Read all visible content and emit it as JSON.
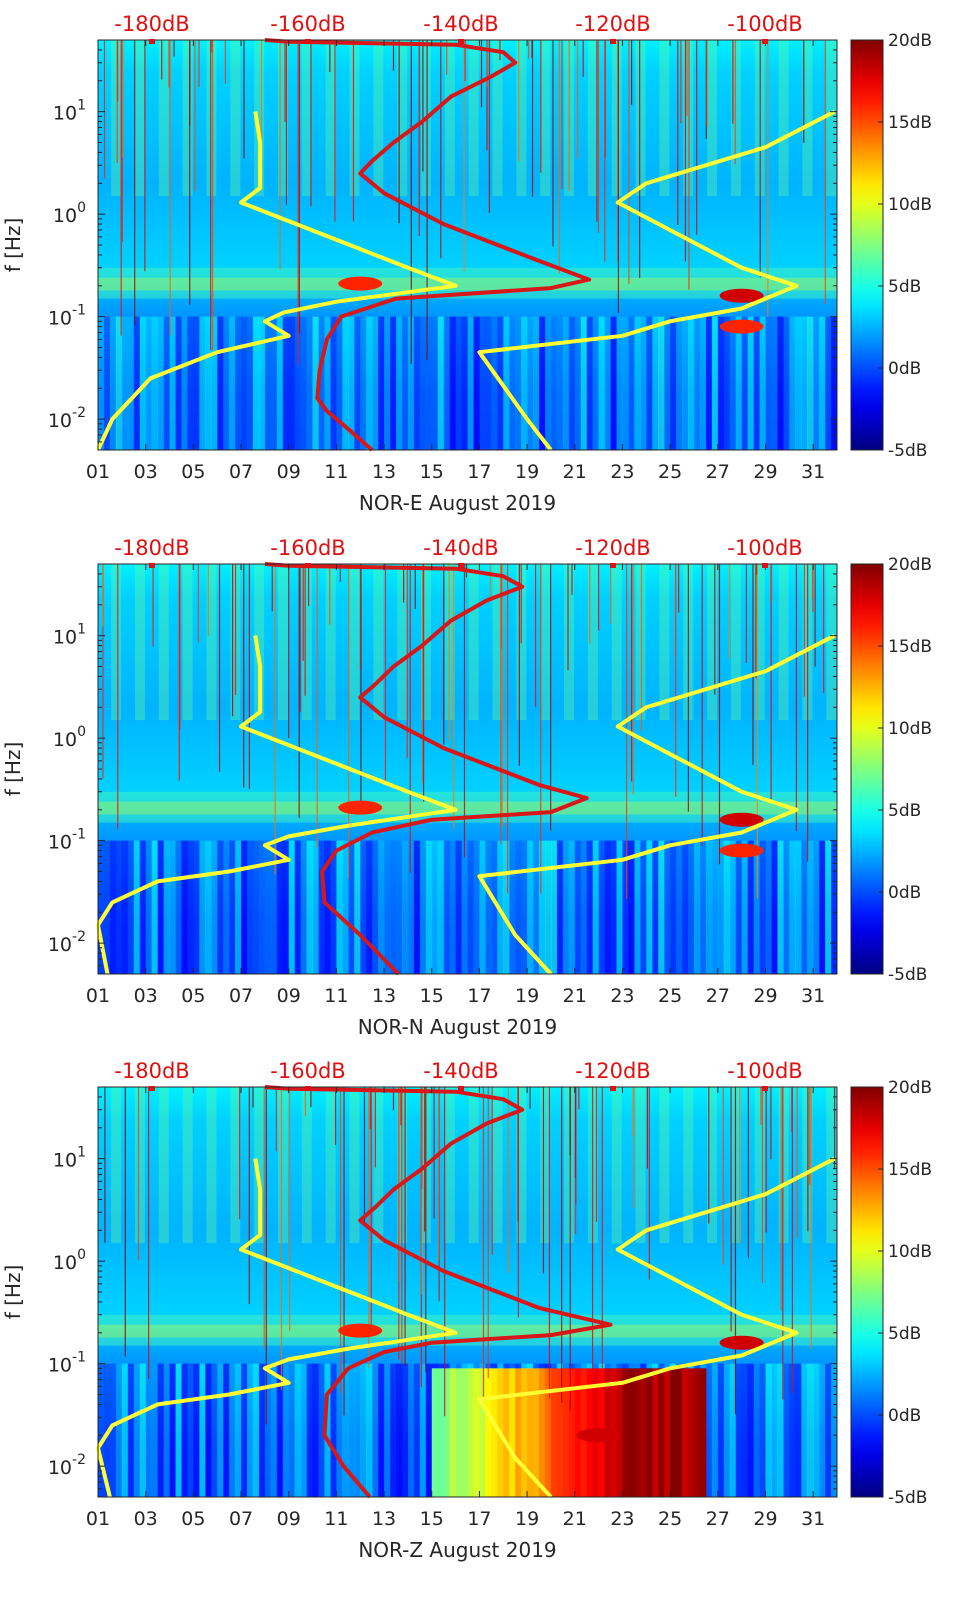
{
  "chart_data": [
    {
      "type": "heatmap",
      "panel": "NOR-E",
      "xlabel": "NOR-E August 2019",
      "ylabel": "f [Hz]",
      "x_ticks": [
        "01",
        "03",
        "05",
        "07",
        "09",
        "11",
        "13",
        "15",
        "17",
        "19",
        "21",
        "23",
        "25",
        "27",
        "29",
        "31"
      ],
      "x_range": [
        1,
        32
      ],
      "y_scale": "log",
      "y_ticks": [
        {
          "v": 0.01,
          "m": "10",
          "e": "-2"
        },
        {
          "v": 0.1,
          "m": "10",
          "e": "-1"
        },
        {
          "v": 1,
          "m": "10",
          "e": "0"
        },
        {
          "v": 10,
          "m": "10",
          "e": "1"
        }
      ],
      "y_range": [
        0.005,
        50
      ],
      "top_axis_labels": [
        "-180dB",
        "-160dB",
        "-140dB",
        "-120dB",
        "-100dB"
      ],
      "colorbar": {
        "ticks": [
          "20dB",
          "15dB",
          "10dB",
          "5dB",
          "0dB",
          "-5dB"
        ],
        "range": [
          -5,
          20
        ],
        "colormap": "jet"
      },
      "microseism_peaks_hz": [
        0.2,
        0.07
      ],
      "notable_events": [
        {
          "day": 28,
          "f_hz": 0.16,
          "db": 18
        },
        {
          "day": 28,
          "f_hz": 0.08,
          "db": 16
        },
        {
          "day": 12,
          "f_hz": 0.21,
          "db": 16
        }
      ],
      "series": [
        {
          "color": "#ffff33",
          "x": [
            1,
            1.6,
            3.2,
            6.0,
            9.0,
            8.0,
            8.8,
            11.0,
            16.0,
            14.0,
            7.0,
            7.8,
            7.8,
            7.6
          ],
          "y": [
            0.005,
            0.01,
            0.025,
            0.045,
            0.065,
            0.09,
            0.11,
            0.14,
            0.2,
            0.3,
            1.3,
            1.8,
            5.0,
            10.0
          ]
        },
        {
          "color": "#ffff33",
          "x": [
            20.0,
            19.0,
            17.0,
            23.0,
            25.0,
            28.0,
            30.3,
            28.0,
            22.8,
            24.0,
            29.0,
            31.9
          ],
          "y": [
            0.005,
            0.01,
            0.045,
            0.065,
            0.09,
            0.12,
            0.2,
            0.3,
            1.3,
            2.0,
            4.5,
            10.0
          ]
        },
        {
          "color": "#d81818",
          "x": [
            12.5,
            11.5,
            10.6,
            10.2,
            10.3,
            10.6,
            11.2,
            13.5,
            20.0,
            21.6,
            19.5,
            15.5,
            13.0,
            12.0,
            12.5,
            13.4,
            14.6,
            15.8,
            17.5,
            18.5,
            18.0,
            16.0,
            9.0,
            8.0
          ],
          "y": [
            0.005,
            0.008,
            0.012,
            0.016,
            0.03,
            0.06,
            0.1,
            0.15,
            0.19,
            0.23,
            0.35,
            0.8,
            1.6,
            2.5,
            3.3,
            5.0,
            8.0,
            14.0,
            22.0,
            30.0,
            38.0,
            45.0,
            48.0,
            50.0
          ]
        }
      ]
    },
    {
      "type": "heatmap",
      "panel": "NOR-N",
      "xlabel": "NOR-N August 2019",
      "ylabel": "f [Hz]",
      "x_ticks": [
        "01",
        "03",
        "05",
        "07",
        "09",
        "11",
        "13",
        "15",
        "17",
        "19",
        "21",
        "23",
        "25",
        "27",
        "29",
        "31"
      ],
      "x_range": [
        1,
        32
      ],
      "y_scale": "log",
      "y_ticks": [
        {
          "v": 0.01,
          "m": "10",
          "e": "-2"
        },
        {
          "v": 0.1,
          "m": "10",
          "e": "-1"
        },
        {
          "v": 1,
          "m": "10",
          "e": "0"
        },
        {
          "v": 10,
          "m": "10",
          "e": "1"
        }
      ],
      "y_range": [
        0.005,
        50
      ],
      "top_axis_labels": [
        "-180dB",
        "-160dB",
        "-140dB",
        "-120dB",
        "-100dB"
      ],
      "colorbar": {
        "ticks": [
          "20dB",
          "15dB",
          "10dB",
          "5dB",
          "0dB",
          "-5dB"
        ],
        "range": [
          -5,
          20
        ],
        "colormap": "jet"
      },
      "microseism_peaks_hz": [
        0.2,
        0.07
      ],
      "notable_events": [
        {
          "day": 28,
          "f_hz": 0.16,
          "db": 18
        },
        {
          "day": 28,
          "f_hz": 0.08,
          "db": 16
        },
        {
          "day": 12,
          "f_hz": 0.21,
          "db": 16
        }
      ],
      "series": [
        {
          "color": "#ffff33",
          "x": [
            1.4,
            1.0,
            1.6,
            3.5,
            6.5,
            9.0,
            8.0,
            9.0,
            11.5,
            16.0,
            14.0,
            7.0,
            7.8,
            7.8,
            7.6
          ],
          "y": [
            0.005,
            0.015,
            0.025,
            0.04,
            0.05,
            0.065,
            0.09,
            0.11,
            0.14,
            0.2,
            0.3,
            1.3,
            1.8,
            5.0,
            10.0
          ]
        },
        {
          "color": "#ffff33",
          "x": [
            20.0,
            18.5,
            17.0,
            23.0,
            25.0,
            28.0,
            30.3,
            28.0,
            22.8,
            24.0,
            29.0,
            31.9
          ],
          "y": [
            0.005,
            0.012,
            0.045,
            0.065,
            0.09,
            0.12,
            0.2,
            0.3,
            1.3,
            2.0,
            4.5,
            10.0
          ]
        },
        {
          "color": "#d81818",
          "x": [
            13.6,
            12.0,
            10.5,
            10.4,
            11.0,
            12.5,
            15.0,
            20.0,
            21.5,
            19.5,
            15.5,
            13.0,
            12.0,
            12.6,
            13.4,
            14.6,
            15.8,
            17.3,
            18.8,
            18.0,
            16.0,
            9.0,
            8.0
          ],
          "y": [
            0.005,
            0.012,
            0.025,
            0.05,
            0.08,
            0.12,
            0.16,
            0.19,
            0.26,
            0.35,
            0.8,
            1.6,
            2.5,
            3.3,
            5.0,
            8.0,
            14.0,
            22.0,
            30.0,
            38.0,
            45.0,
            48.0,
            50.0
          ]
        }
      ]
    },
    {
      "type": "heatmap",
      "panel": "NOR-Z",
      "xlabel": "NOR-Z August 2019",
      "ylabel": "f [Hz]",
      "x_ticks": [
        "01",
        "03",
        "05",
        "07",
        "09",
        "11",
        "13",
        "15",
        "17",
        "19",
        "21",
        "23",
        "25",
        "27",
        "29",
        "31"
      ],
      "x_range": [
        1,
        32
      ],
      "y_scale": "log",
      "y_ticks": [
        {
          "v": 0.01,
          "m": "10",
          "e": "-2"
        },
        {
          "v": 0.1,
          "m": "10",
          "e": "-1"
        },
        {
          "v": 1,
          "m": "10",
          "e": "0"
        },
        {
          "v": 10,
          "m": "10",
          "e": "1"
        }
      ],
      "y_range": [
        0.005,
        50
      ],
      "top_axis_labels": [
        "-180dB",
        "-160dB",
        "-140dB",
        "-120dB",
        "-100dB"
      ],
      "colorbar": {
        "ticks": [
          "20dB",
          "15dB",
          "10dB",
          "5dB",
          "0dB",
          "-5dB"
        ],
        "range": [
          -5,
          20
        ],
        "colormap": "jet"
      },
      "microseism_peaks_hz": [
        0.2,
        0.07
      ],
      "notable_events": [
        {
          "day": 28,
          "f_hz": 0.16,
          "db": 18
        },
        {
          "day": 12,
          "f_hz": 0.21,
          "db": 16
        },
        {
          "day": 22,
          "f_hz": 0.02,
          "db": 18
        }
      ],
      "low_frequency_block": {
        "day_start": 15,
        "day_end": 26.3,
        "f_max_hz": 0.09,
        "db_range": [
          8,
          20
        ]
      },
      "series": [
        {
          "color": "#ffff33",
          "x": [
            1.5,
            1.0,
            1.6,
            3.5,
            6.5,
            9.0,
            8.0,
            9.0,
            11.5,
            16.0,
            14.0,
            7.0,
            7.8,
            7.8,
            7.6
          ],
          "y": [
            0.005,
            0.015,
            0.025,
            0.04,
            0.05,
            0.065,
            0.09,
            0.11,
            0.14,
            0.2,
            0.3,
            1.3,
            1.8,
            5.0,
            10.0
          ]
        },
        {
          "color": "#ffff33",
          "x": [
            20.0,
            18.5,
            17.0,
            23.0,
            25.0,
            28.0,
            30.3,
            28.0,
            22.8,
            24.0,
            29.0,
            31.9
          ],
          "y": [
            0.005,
            0.012,
            0.045,
            0.065,
            0.09,
            0.12,
            0.2,
            0.3,
            1.3,
            2.0,
            4.5,
            10.0
          ]
        },
        {
          "color": "#d81818",
          "x": [
            12.4,
            11.3,
            10.5,
            10.6,
            11.5,
            13.0,
            15.0,
            20.0,
            22.5,
            19.5,
            15.5,
            13.0,
            12.0,
            12.6,
            13.4,
            14.6,
            15.8,
            17.3,
            18.8,
            18.0,
            16.0,
            9.0,
            8.0
          ],
          "y": [
            0.005,
            0.01,
            0.02,
            0.05,
            0.09,
            0.13,
            0.16,
            0.19,
            0.24,
            0.35,
            0.8,
            1.6,
            2.5,
            3.3,
            5.0,
            8.0,
            14.0,
            22.0,
            30.0,
            38.0,
            45.0,
            48.0,
            50.0
          ]
        }
      ]
    }
  ]
}
